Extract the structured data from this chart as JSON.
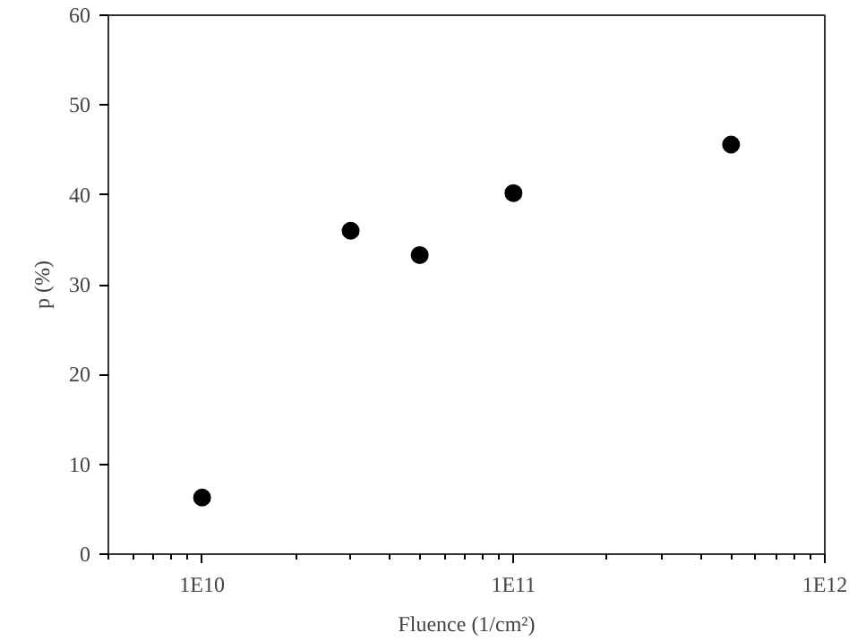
{
  "chart_data": {
    "type": "scatter",
    "xlabel": "Fluence (1/cm²)",
    "ylabel": "p (%)",
    "log": "x",
    "x": [
      10000000000.0,
      30000000000.0,
      50000000000.0,
      100000000000.0,
      500000000000.0
    ],
    "series": [
      {
        "color": "#000000",
        "values": [
          6.3,
          36.0,
          33.3,
          40.2,
          45.6
        ]
      }
    ],
    "xlim": [
      5000000000.0,
      1000000000000.0
    ],
    "xticks": [
      {
        "value": 10000000000.0,
        "label": "1E10"
      },
      {
        "value": 100000000000.0,
        "label": "1E11"
      },
      {
        "value": 1000000000000.0,
        "label": "1E12"
      }
    ],
    "ylim": [
      0,
      60
    ],
    "yticks": [
      0,
      10,
      20,
      30,
      40,
      50,
      60
    ],
    "grid": false,
    "marker": "circle"
  }
}
